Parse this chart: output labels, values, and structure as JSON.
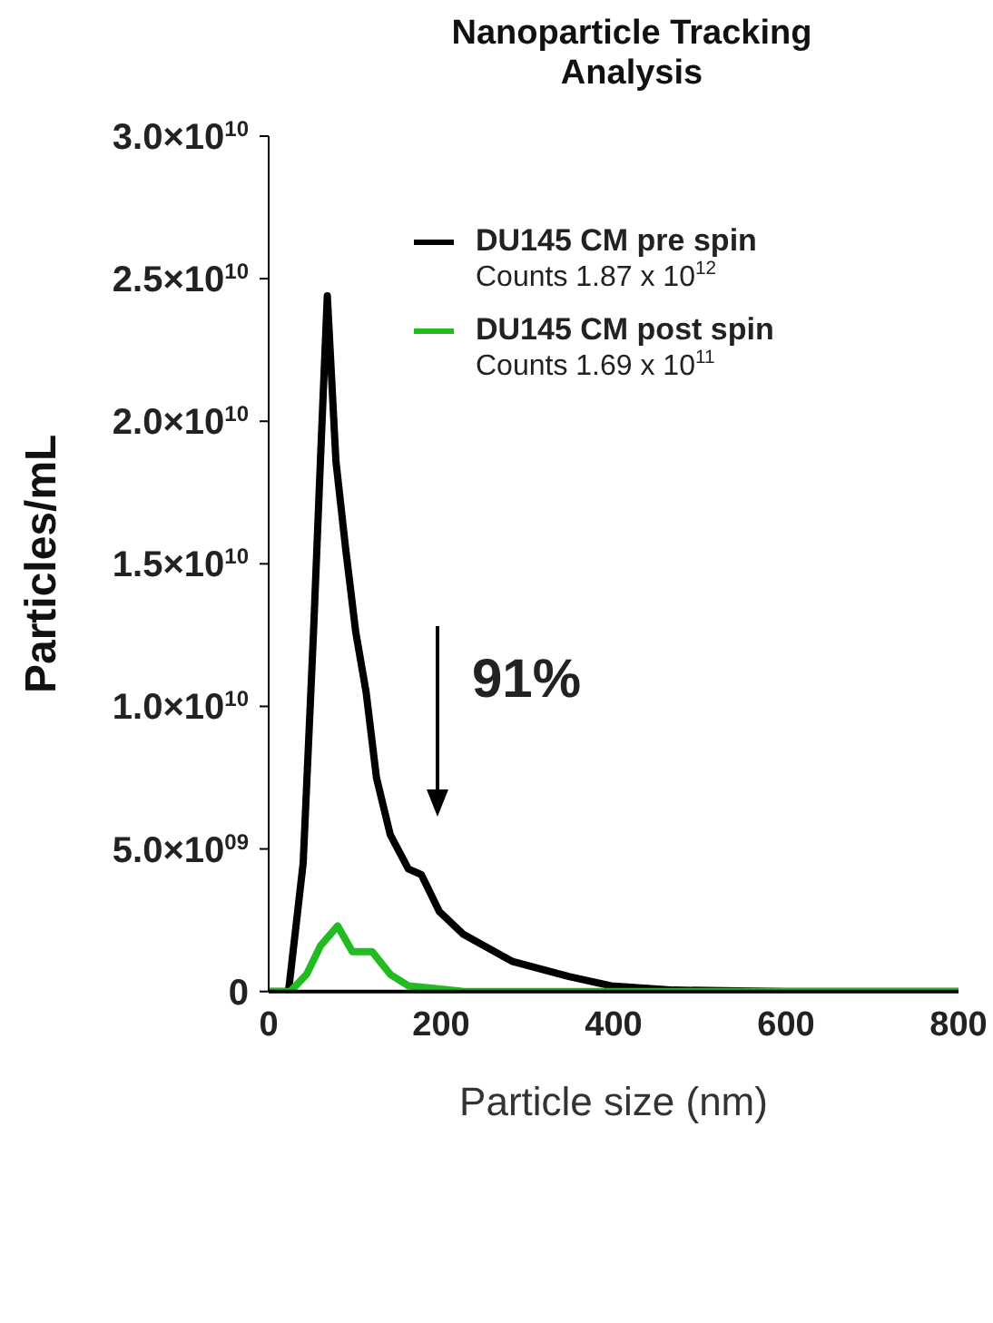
{
  "chart_data": {
    "type": "line",
    "title": "Nanoparticle Tracking Analysis",
    "xlabel": "Particle size (nm)",
    "ylabel": "Particles/mL",
    "xlim": [
      0,
      800
    ],
    "xticks": [
      0,
      200,
      400,
      600,
      800
    ],
    "ylim": [
      0,
      30000000000
    ],
    "yticks": [
      {
        "value": 0,
        "label": "0"
      },
      {
        "value": 5000000000,
        "label": "5.0×10$^{09}$"
      },
      {
        "value": 10000000000,
        "label": "1.0×10$^{10}$"
      },
      {
        "value": 15000000000,
        "label": "1.5×10$^{10}$"
      },
      {
        "value": 20000000000,
        "label": "2.0×10$^{10}$"
      },
      {
        "value": 25000000000,
        "label": "2.5×10$^{10}$"
      },
      {
        "value": 30000000000,
        "label": "3.0×10$^{10}$"
      }
    ],
    "legend": "top right",
    "marker": "none",
    "line_style": "solid",
    "annotations": [
      "Counts 1.87 x 10$^{12}$",
      "Counts 1.69 x 10$^{11}$",
      "91%"
    ],
    "series": [
      {
        "name": "DU145 CM pre spin",
        "color": "#000000",
        "x": [
          0,
          23,
          40,
          52,
          60,
          68,
          78,
          89,
          101,
          113,
          125,
          141,
          162,
          177,
          198,
          226,
          283,
          348,
          397,
          470,
          600,
          800
        ],
        "values": [
          0,
          0,
          4500000000,
          12600000000,
          18600000000,
          24400000000,
          18600000000,
          15600000000,
          12600000000,
          10500000000,
          7500000000,
          5500000000,
          4300000000,
          4100000000,
          2800000000,
          2000000000,
          1050000000,
          530000000,
          200000000,
          50000000,
          0,
          0
        ]
      },
      {
        "name": "DU145 CM post spin",
        "color": "#22bb22",
        "x": [
          0,
          25,
          44,
          60,
          80,
          97,
          120,
          141,
          162,
          194,
          226,
          800
        ],
        "values": [
          0,
          0,
          600000000,
          1600000000,
          2300000000,
          1400000000,
          1400000000,
          600000000,
          200000000,
          100000000,
          0,
          0
        ]
      }
    ]
  }
}
